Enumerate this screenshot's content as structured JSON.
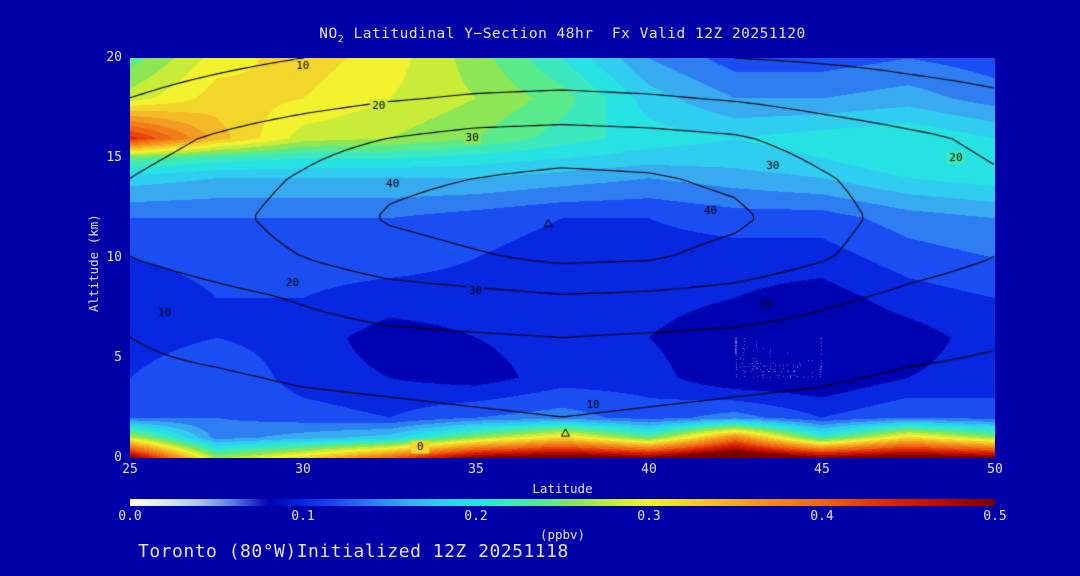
{
  "title": {
    "pre": "NO",
    "sub": "2",
    "rest": " Latitudinal Y−Section 48hr  Fx Valid 12Z 20251120"
  },
  "footer": "Toronto (80°W)Initialized 12Z 20251118",
  "axes": {
    "x_label": "Latitude",
    "y_label": "Altitude (km)",
    "x_ticks": [
      "25",
      "30",
      "35",
      "40",
      "45",
      "50"
    ],
    "y_ticks": [
      "0",
      "5",
      "10",
      "15",
      "20"
    ]
  },
  "colorbar": {
    "ticks": [
      "0.0",
      "0.1",
      "0.2",
      "0.3",
      "0.4",
      "0.5"
    ],
    "label": "(ppbv)",
    "min": 0.0,
    "max": 0.5
  },
  "colors": {
    "background": "#0000A8",
    "text": "#E6E2F8",
    "contour_line": "#000000"
  },
  "chart_data": {
    "type": "heatmap",
    "title": "NO2 Latitudinal Y-Section 48hr Fx Valid 12Z 20251120",
    "xlabel": "Latitude",
    "ylabel": "Altitude (km)",
    "units": "ppbv",
    "xlim": [
      25,
      50
    ],
    "ylim": [
      0,
      20
    ],
    "x": [
      25,
      27.5,
      30,
      32.5,
      35,
      37.5,
      40,
      42.5,
      45,
      47.5,
      50
    ],
    "y": [
      0,
      1,
      2,
      4,
      6,
      8,
      10,
      12,
      14,
      15,
      16,
      18,
      20
    ],
    "values_ppbv": [
      [
        0.5,
        0.26,
        0.32,
        0.4,
        0.5,
        0.52,
        0.5,
        0.55,
        0.5,
        0.52,
        0.5
      ],
      [
        0.28,
        0.14,
        0.16,
        0.18,
        0.26,
        0.32,
        0.24,
        0.38,
        0.22,
        0.32,
        0.26
      ],
      [
        0.13,
        0.13,
        0.12,
        0.11,
        0.13,
        0.14,
        0.12,
        0.14,
        0.11,
        0.13,
        0.12
      ],
      [
        0.11,
        0.13,
        0.1,
        0.09,
        0.08,
        0.1,
        0.1,
        0.07,
        0.07,
        0.09,
        0.1
      ],
      [
        0.1,
        0.11,
        0.1,
        0.08,
        0.09,
        0.1,
        0.09,
        0.07,
        0.07,
        0.08,
        0.1
      ],
      [
        0.09,
        0.11,
        0.11,
        0.1,
        0.1,
        0.1,
        0.1,
        0.09,
        0.08,
        0.1,
        0.11
      ],
      [
        0.11,
        0.12,
        0.12,
        0.12,
        0.11,
        0.1,
        0.1,
        0.1,
        0.1,
        0.12,
        0.13
      ],
      [
        0.13,
        0.13,
        0.13,
        0.13,
        0.12,
        0.11,
        0.11,
        0.12,
        0.12,
        0.14,
        0.15
      ],
      [
        0.18,
        0.17,
        0.17,
        0.17,
        0.17,
        0.16,
        0.15,
        0.16,
        0.17,
        0.19,
        0.2
      ],
      [
        0.24,
        0.22,
        0.21,
        0.21,
        0.2,
        0.19,
        0.18,
        0.18,
        0.19,
        0.21,
        0.21
      ],
      [
        0.44,
        0.34,
        0.28,
        0.27,
        0.25,
        0.22,
        0.2,
        0.19,
        0.2,
        0.21,
        0.19
      ],
      [
        0.28,
        0.32,
        0.31,
        0.29,
        0.27,
        0.24,
        0.18,
        0.15,
        0.15,
        0.16,
        0.14
      ],
      [
        0.24,
        0.3,
        0.32,
        0.3,
        0.26,
        0.21,
        0.15,
        0.12,
        0.12,
        0.13,
        0.12
      ]
    ],
    "fill_level_step": 0.02,
    "colormap_stops": [
      [
        0.0,
        "#ffffff"
      ],
      [
        0.02,
        "#dce9f8"
      ],
      [
        0.04,
        "#a9c6ee"
      ],
      [
        0.06,
        "#5578e2"
      ],
      [
        0.08,
        "#0003b0"
      ],
      [
        0.1,
        "#0727e0"
      ],
      [
        0.12,
        "#1a4ef2"
      ],
      [
        0.14,
        "#2e7ef2"
      ],
      [
        0.16,
        "#38abf0"
      ],
      [
        0.18,
        "#2fcdf0"
      ],
      [
        0.2,
        "#27e2e2"
      ],
      [
        0.22,
        "#3ce9bf"
      ],
      [
        0.24,
        "#58ea8b"
      ],
      [
        0.26,
        "#8ce655"
      ],
      [
        0.28,
        "#c9ec39"
      ],
      [
        0.3,
        "#f2f22e"
      ],
      [
        0.33,
        "#f3c829"
      ],
      [
        0.36,
        "#f39b22"
      ],
      [
        0.4,
        "#ef6611"
      ],
      [
        0.44,
        "#de2403"
      ],
      [
        0.47,
        "#bb0a00"
      ],
      [
        0.5,
        "#7a0000"
      ]
    ],
    "contour_overlay": {
      "levels": [
        10,
        20,
        30,
        40
      ],
      "x": [
        25,
        27.5,
        30,
        32.5,
        35,
        37.5,
        40,
        42.5,
        45,
        47.5,
        50
      ],
      "y": [
        0,
        2,
        4,
        6,
        8,
        10,
        12,
        14,
        16,
        18,
        20
      ],
      "values": [
        [
          2,
          2,
          2,
          2,
          3,
          3,
          3,
          3,
          2,
          2,
          2
        ],
        [
          5,
          6,
          7,
          8,
          9,
          10,
          9,
          8,
          7,
          6,
          5
        ],
        [
          8,
          9,
          11,
          12,
          13,
          14,
          13,
          12,
          11,
          9,
          8
        ],
        [
          10,
          13,
          16,
          18,
          19,
          20,
          19,
          18,
          16,
          13,
          11
        ],
        [
          13,
          17,
          21,
          25,
          27,
          29,
          28,
          26,
          22,
          18,
          15
        ],
        [
          20,
          25,
          30,
          36,
          39,
          42,
          41,
          37,
          31,
          24,
          20
        ],
        [
          22,
          27,
          34,
          41,
          44,
          46,
          45,
          42,
          34,
          26,
          22
        ],
        [
          20,
          25,
          31,
          38,
          40,
          42,
          41,
          38,
          31,
          25,
          21
        ],
        [
          16,
          21,
          26,
          30,
          33,
          34,
          33,
          31,
          26,
          22,
          18
        ],
        [
          10,
          13,
          16,
          19,
          21,
          22,
          21,
          19,
          16,
          13,
          11
        ],
        [
          6,
          8,
          10,
          11,
          12,
          12,
          11,
          10,
          9,
          8,
          7
        ]
      ]
    },
    "contour_labels": [
      {
        "text": "10",
        "lat": 30.0,
        "alt": 19.6
      },
      {
        "text": "20",
        "lat": 32.2,
        "alt": 17.6
      },
      {
        "text": "30",
        "lat": 34.9,
        "alt": 16.0
      },
      {
        "text": "40",
        "lat": 32.6,
        "alt": 13.7
      },
      {
        "text": "30",
        "lat": 43.6,
        "alt": 14.6
      },
      {
        "text": "20",
        "lat": 48.9,
        "alt": 15.0
      },
      {
        "text": "40",
        "lat": 41.8,
        "alt": 12.3
      },
      {
        "text": "10",
        "lat": 26.0,
        "alt": 7.2
      },
      {
        "text": "20",
        "lat": 29.7,
        "alt": 8.7
      },
      {
        "text": "30",
        "lat": 35.0,
        "alt": 8.3
      },
      {
        "text": "20",
        "lat": 43.4,
        "alt": 7.6
      },
      {
        "text": "10",
        "lat": 38.4,
        "alt": 2.6
      },
      {
        "text": "0",
        "lat": 33.4,
        "alt": 0.5
      }
    ],
    "markers": [
      {
        "symbol": "triangle",
        "lat": 37.1,
        "alt": 11.7
      },
      {
        "symbol": "triangle",
        "lat": 37.6,
        "alt": 1.2
      }
    ]
  }
}
